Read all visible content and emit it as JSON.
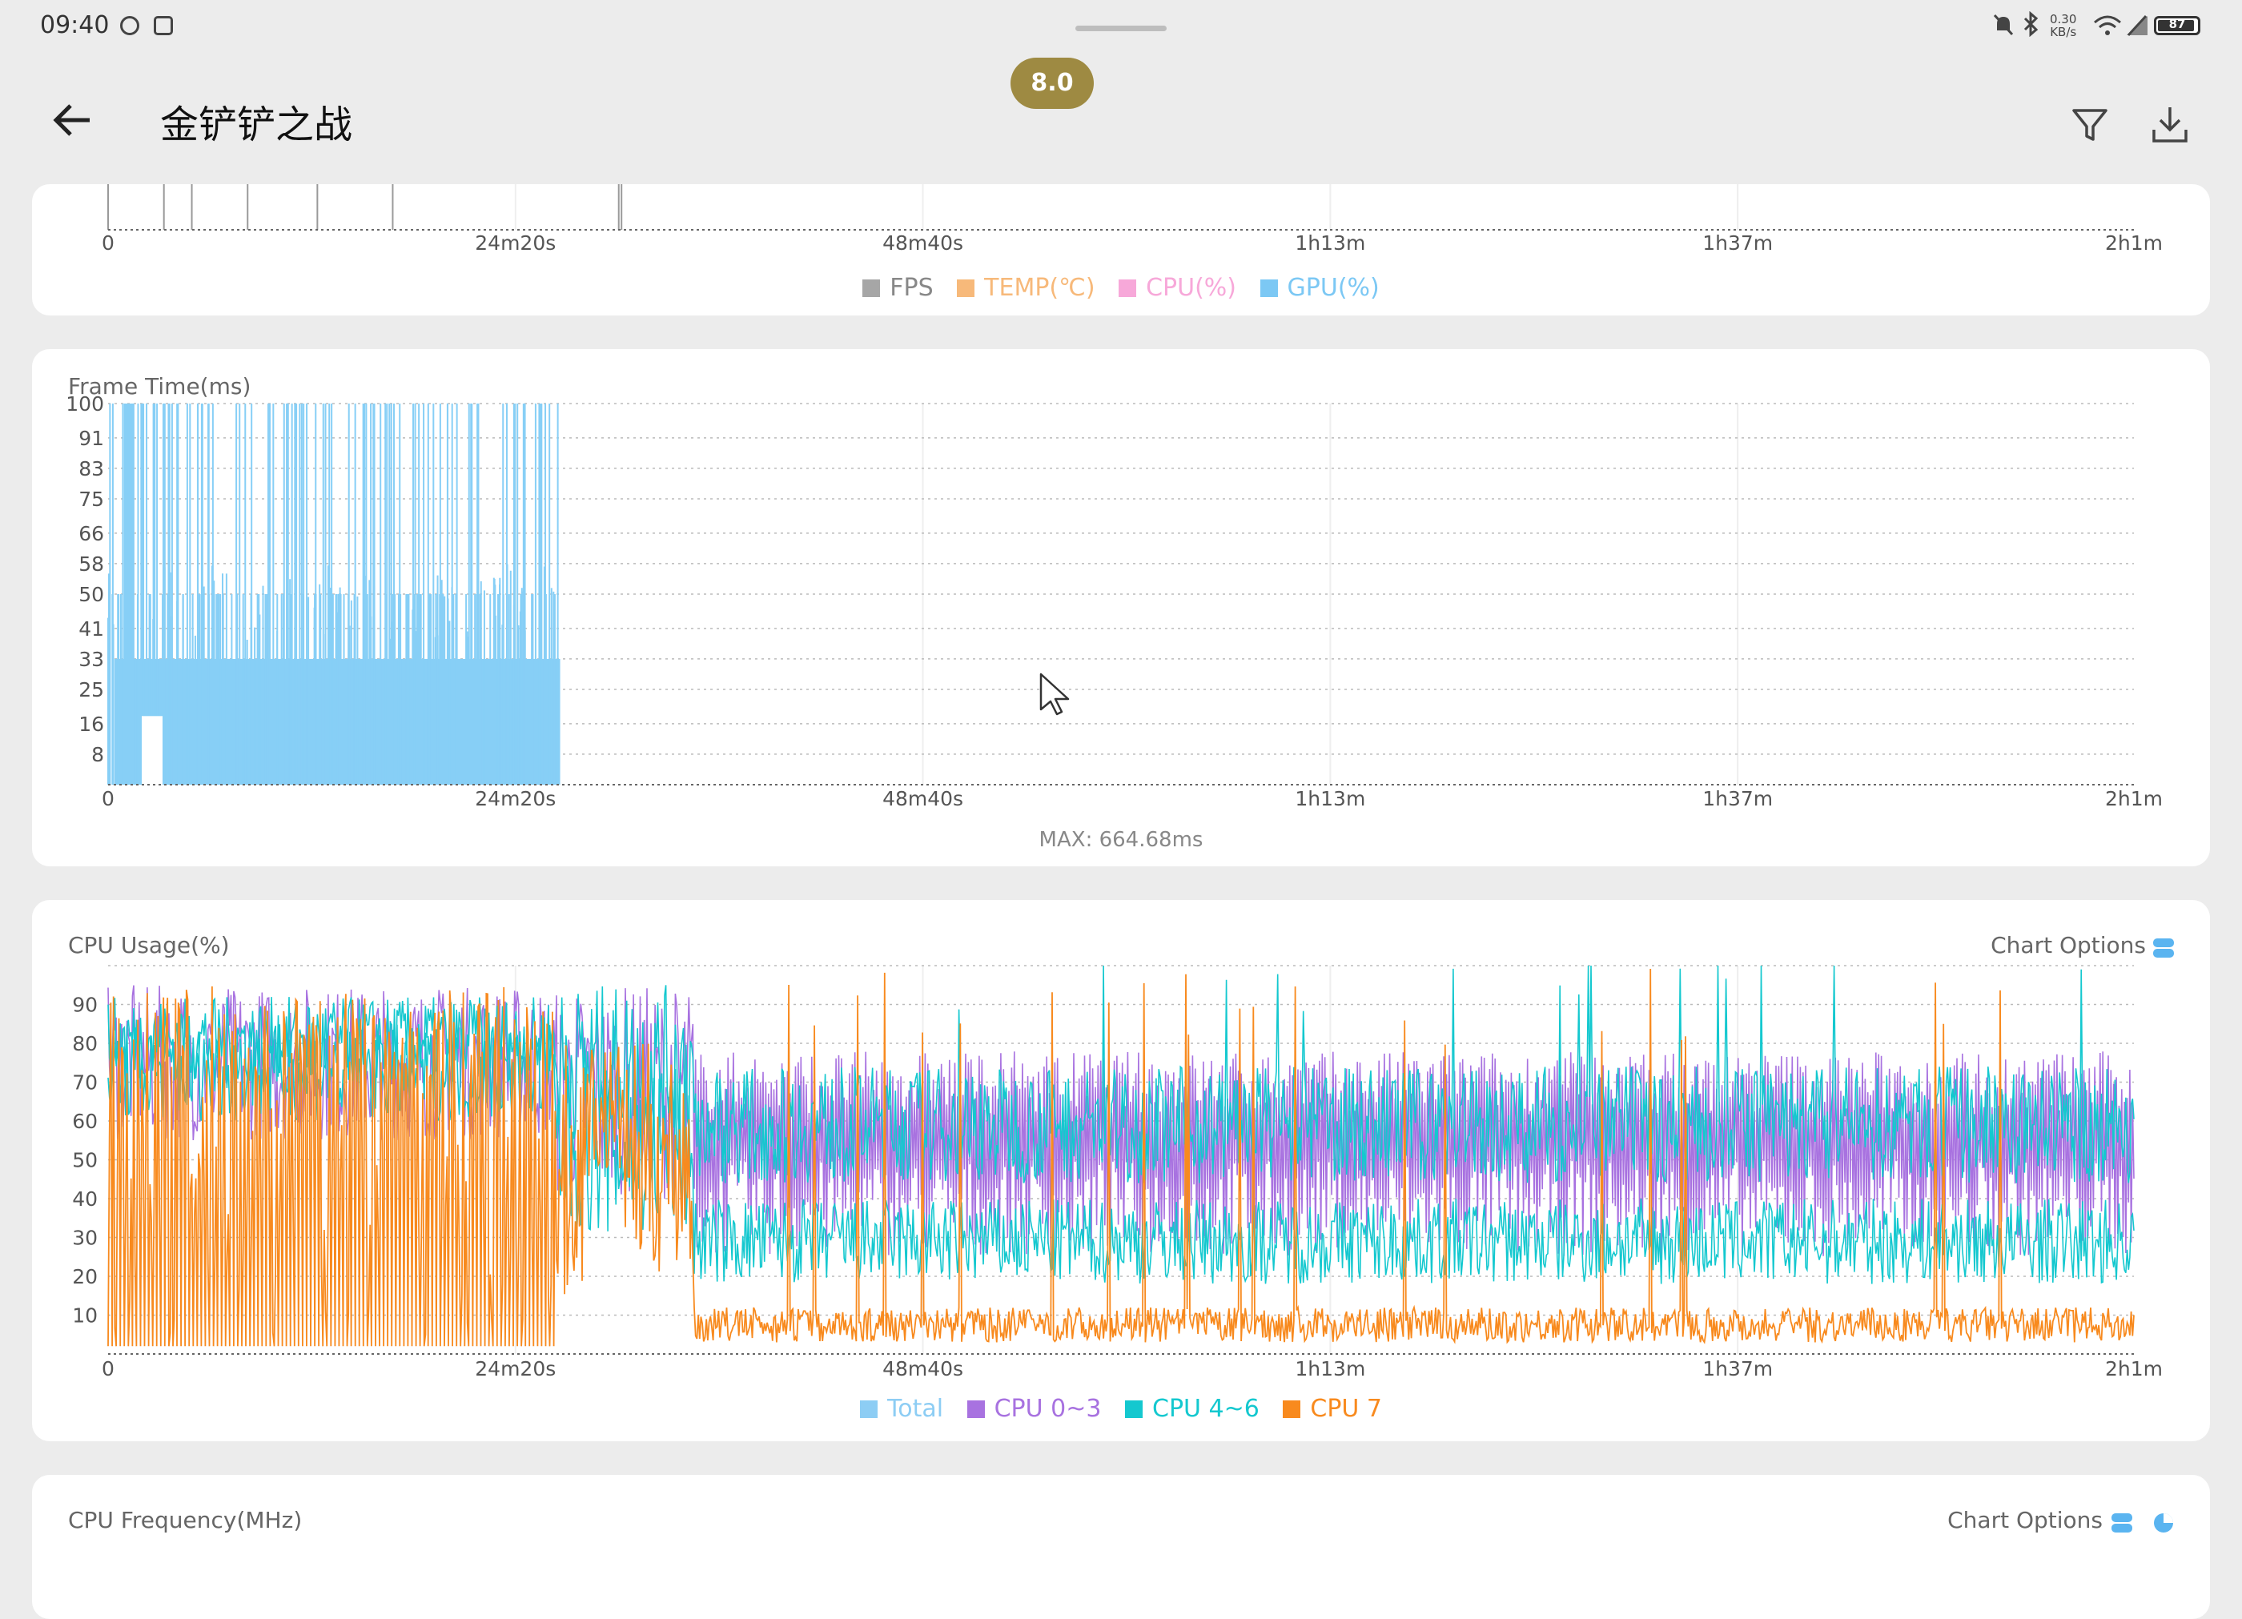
{
  "status_bar": {
    "time": "09:40",
    "net_speed": "0.30\nKB/s",
    "battery": "87"
  },
  "score": "8.0",
  "header": {
    "title": "金铲铲之战"
  },
  "x_tick_labels": [
    "0",
    "24m20s",
    "48m40s",
    "1h13m",
    "1h37m",
    "2h1m"
  ],
  "overview_chart": {
    "legend": [
      {
        "label": "FPS",
        "color": "#a6a6a6"
      },
      {
        "label": "TEMP(℃)",
        "color": "#f7b97a"
      },
      {
        "label": "CPU(%)",
        "color": "#f7a8d9"
      },
      {
        "label": "GPU(%)",
        "color": "#7cc8f4"
      }
    ]
  },
  "frame_time_chart": {
    "title": "Frame Time(ms)",
    "footer": "MAX: 664.68ms",
    "color": "#87cff6",
    "chart_data": {
      "type": "bar",
      "title": "Frame Time(ms)",
      "x_unit": "elapsed time",
      "x_range_seconds": [
        0,
        7260
      ],
      "y_ticks": [
        8,
        16,
        25,
        33,
        41,
        50,
        58,
        66,
        75,
        83,
        91,
        100
      ],
      "ylim": [
        0,
        100
      ],
      "data_end_seconds": 1620,
      "typical_frame_time_ms": 33,
      "dense_spike_range_ms": [
        33,
        50
      ],
      "max_ms": 664.68,
      "grid": true
    }
  },
  "cpu_usage_chart": {
    "title": "CPU Usage(%)",
    "options_label": "Chart Options",
    "chart_data": {
      "type": "line",
      "title": "CPU Usage(%)",
      "x_range_seconds": [
        0,
        7260
      ],
      "y_ticks": [
        10,
        20,
        30,
        40,
        50,
        60,
        70,
        80,
        90
      ],
      "ylim": [
        0,
        100
      ],
      "grid": true,
      "series": [
        {
          "name": "Total",
          "color": "#8dcdf4"
        },
        {
          "name": "CPU 0~3",
          "color": "#a872e0"
        },
        {
          "name": "CPU 4~6",
          "color": "#14c8cf"
        },
        {
          "name": "CPU 7",
          "color": "#f88a1e"
        }
      ]
    }
  },
  "cpu_freq_card": {
    "title": "CPU Frequency(MHz)",
    "options_label": "Chart Options"
  }
}
